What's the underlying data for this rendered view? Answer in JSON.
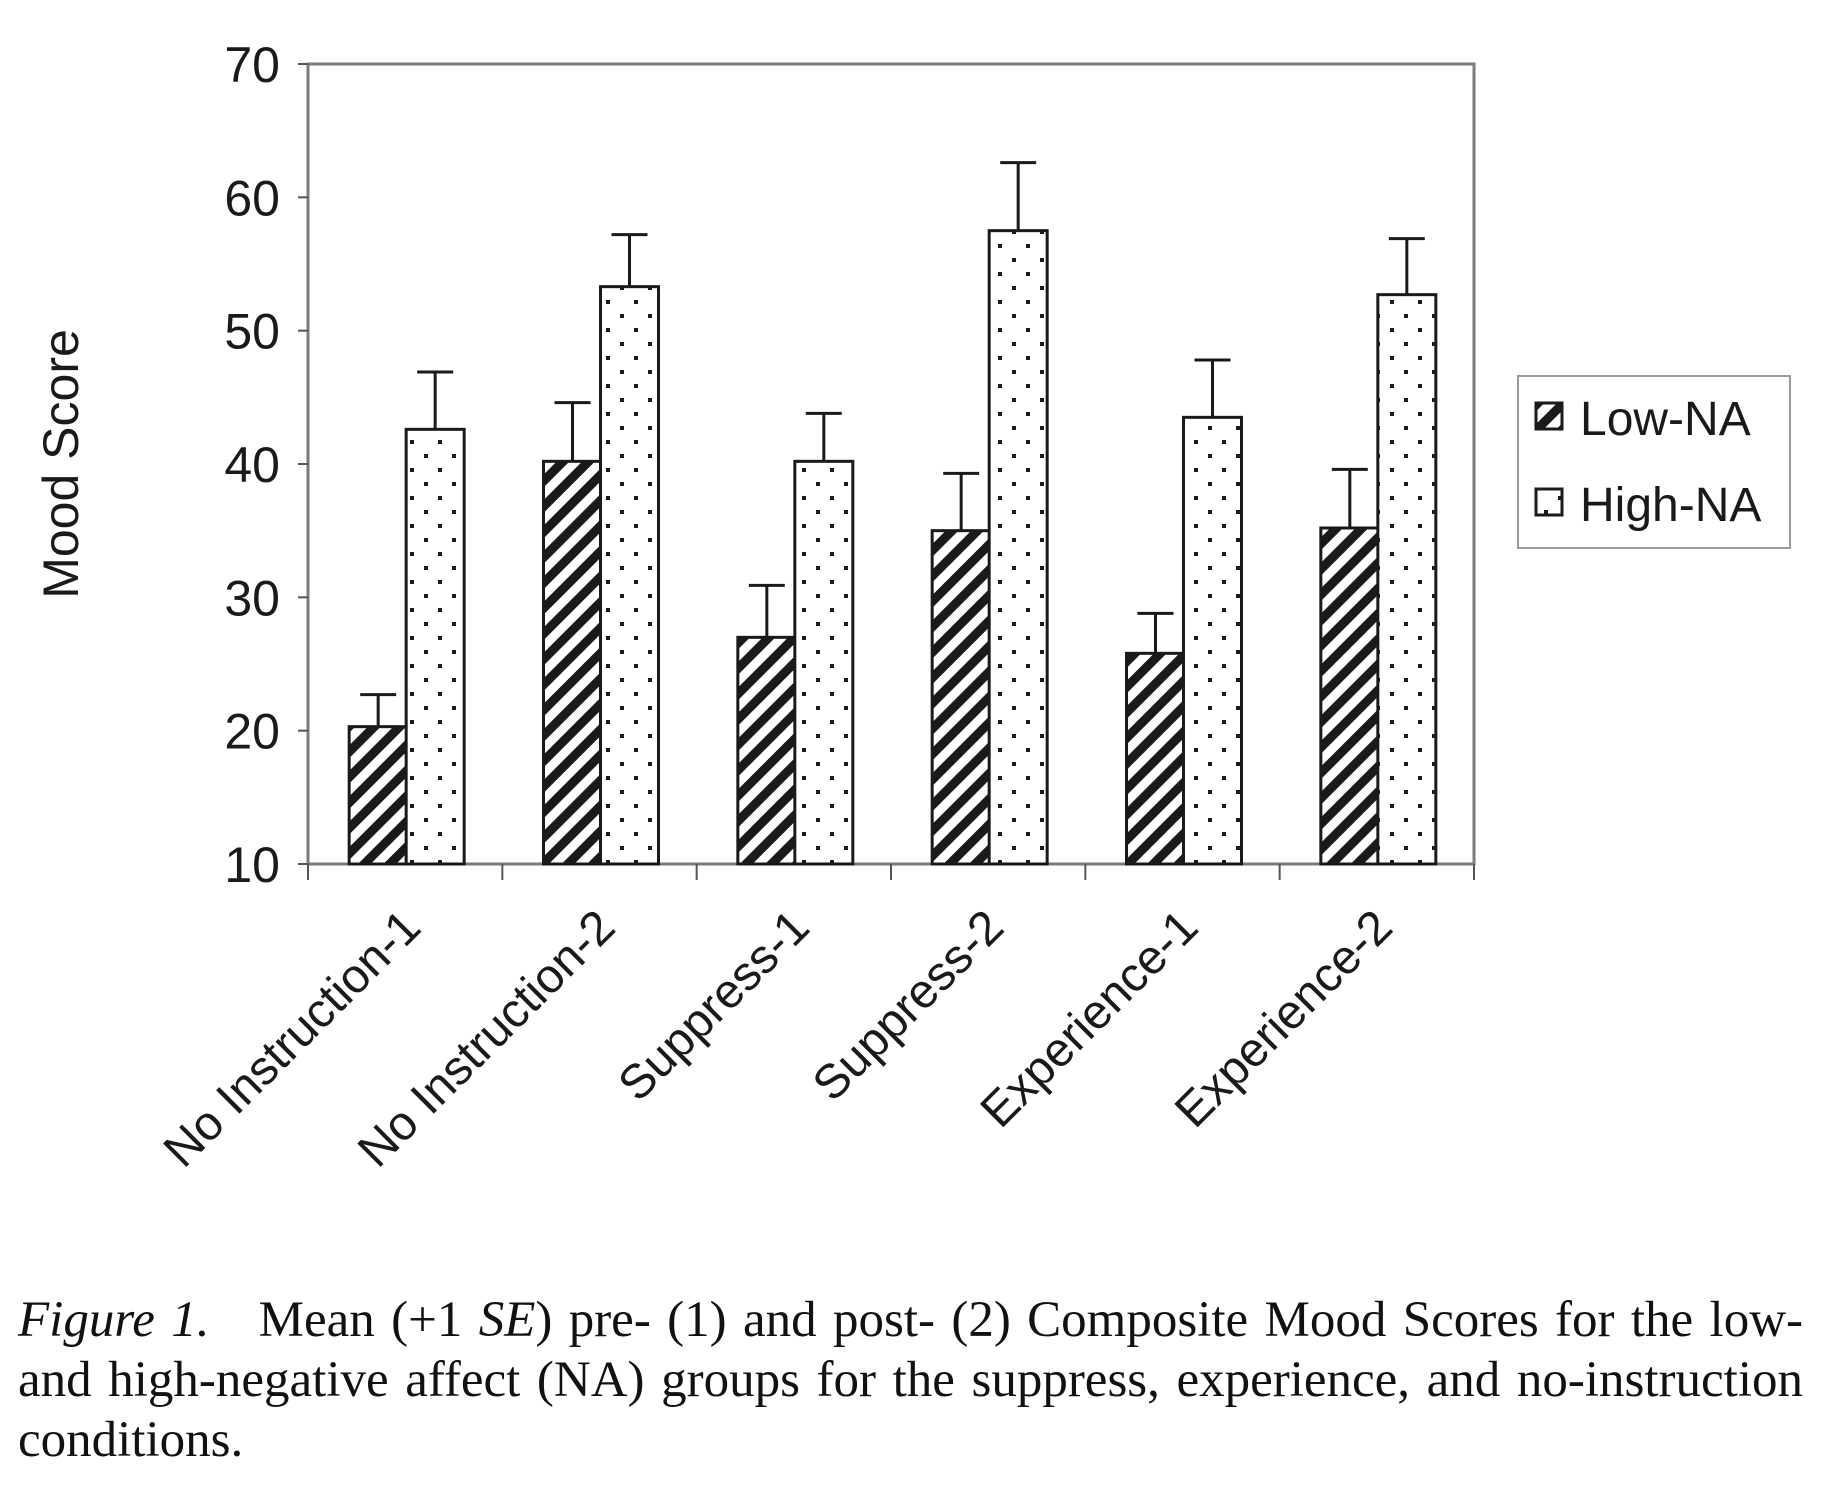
{
  "chart_data": {
    "type": "bar",
    "title": "",
    "xlabel": "",
    "ylabel": "Mood Score",
    "ylim": [
      10,
      70
    ],
    "yticks": [
      10,
      20,
      30,
      40,
      50,
      60,
      70
    ],
    "categories": [
      "No Instruction-1",
      "No Instruction-2",
      "Suppress-1",
      "Suppress-2",
      "Experience-1",
      "Experience-2"
    ],
    "series": [
      {
        "name": "Low-NA",
        "pattern": "diagonal-stripes",
        "values": [
          20.3,
          40.2,
          27.0,
          35.0,
          25.8,
          35.2
        ],
        "error_plus": [
          2.4,
          4.4,
          3.9,
          4.3,
          3.0,
          4.4
        ]
      },
      {
        "name": "High-NA",
        "pattern": "dots",
        "values": [
          42.6,
          53.3,
          40.2,
          57.5,
          43.5,
          52.7
        ],
        "error_plus": [
          4.3,
          3.9,
          3.6,
          5.1,
          4.3,
          4.2
        ]
      }
    ],
    "legend_position": "right",
    "grid": false,
    "colors": {
      "bar_stroke": "#1a1a1a",
      "pattern": "#1a1a1a",
      "background": "#ffffff"
    }
  },
  "caption": {
    "label": "Figure 1.",
    "text_before": "Mean (+1 ",
    "se": "SE",
    "text_after": ") pre- (1) and post- (2) Composite Mood Scores for the low- and high-negative affect (NA) groups for the suppress, experience, and no-instruction conditions."
  }
}
